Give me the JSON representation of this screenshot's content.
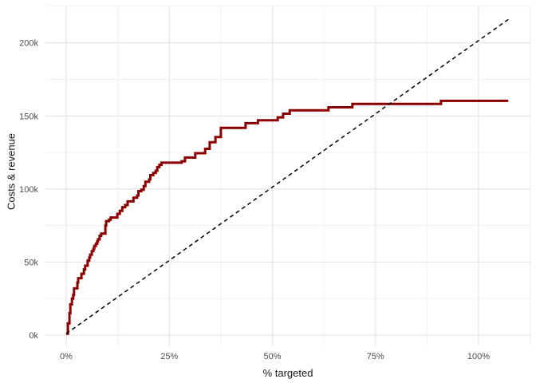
{
  "figure": {
    "background": "#ffffff"
  },
  "colors": {
    "step_line": "#8B0000",
    "baseline_dashed": "#000000",
    "grid_major": "#e3e3e3",
    "grid_minor": "#f1f1f1",
    "tick_text": "#4d4d4d",
    "axis_title_text": "#1a1a1a"
  },
  "chart_data": {
    "type": "line",
    "title": "",
    "xlabel": "% targeted",
    "ylabel": "Costs & revenue",
    "legend": "none",
    "grid": true,
    "x_tick_labels": [
      "0%",
      "25%",
      "50%",
      "75%",
      "100%"
    ],
    "x_tick_values": [
      0,
      25,
      50,
      75,
      100
    ],
    "y_tick_labels": [
      "0k",
      "50k",
      "100k",
      "150k",
      "200k"
    ],
    "y_tick_values": [
      0,
      50000,
      100000,
      150000,
      200000
    ],
    "xlim": [
      -5,
      112.8
    ],
    "ylim": [
      -8000,
      225500
    ],
    "series": [
      {
        "name": "cumulative-costs-revenue-step-curve",
        "type": "step",
        "color": "#8B0000",
        "points": [
          [
            0,
            1000
          ],
          [
            0.4,
            8000
          ],
          [
            0.8,
            15000
          ],
          [
            1.0,
            21000
          ],
          [
            1.4,
            25000
          ],
          [
            1.7,
            27500
          ],
          [
            1.9,
            32000
          ],
          [
            2.7,
            36000
          ],
          [
            2.9,
            39000
          ],
          [
            3.7,
            42000
          ],
          [
            4.3,
            45000
          ],
          [
            4.6,
            47500
          ],
          [
            5.2,
            51000
          ],
          [
            5.6,
            53000
          ],
          [
            5.8,
            55000
          ],
          [
            6.2,
            57500
          ],
          [
            6.6,
            59000
          ],
          [
            6.8,
            61000
          ],
          [
            7.2,
            62500
          ],
          [
            7.5,
            64000
          ],
          [
            7.7,
            65500
          ],
          [
            8.1,
            68000
          ],
          [
            8.5,
            69500
          ],
          [
            9.5,
            75000
          ],
          [
            9.7,
            78000
          ],
          [
            10.4,
            79000
          ],
          [
            10.8,
            80500
          ],
          [
            12.4,
            83000
          ],
          [
            13.0,
            85000
          ],
          [
            13.6,
            87500
          ],
          [
            14.3,
            89000
          ],
          [
            14.9,
            91500
          ],
          [
            16.3,
            94000
          ],
          [
            17.2,
            95500
          ],
          [
            17.5,
            98500
          ],
          [
            18.2,
            99500
          ],
          [
            18.8,
            102000
          ],
          [
            19.2,
            105000
          ],
          [
            20.1,
            106500
          ],
          [
            20.4,
            109500
          ],
          [
            21.1,
            111000
          ],
          [
            21.7,
            112500
          ],
          [
            22.1,
            115000
          ],
          [
            22.6,
            116500
          ],
          [
            23.1,
            118000
          ],
          [
            28.0,
            119000
          ],
          [
            28.8,
            121500
          ],
          [
            31.3,
            124500
          ],
          [
            33.7,
            127500
          ],
          [
            34.8,
            132000
          ],
          [
            36.2,
            135500
          ],
          [
            37.5,
            141800
          ],
          [
            43.5,
            145000
          ],
          [
            46.5,
            147000
          ],
          [
            51.3,
            149000
          ],
          [
            52.6,
            151500
          ],
          [
            54.2,
            153800
          ],
          [
            63.6,
            155900
          ],
          [
            69.4,
            158200
          ],
          [
            90.9,
            160300
          ],
          [
            107.2,
            160300
          ]
        ]
      },
      {
        "name": "diagonal-baseline-dashed",
        "type": "line",
        "dash": true,
        "color": "#000000",
        "points": [
          [
            0,
            1000
          ],
          [
            107.2,
            216000
          ]
        ]
      }
    ]
  }
}
